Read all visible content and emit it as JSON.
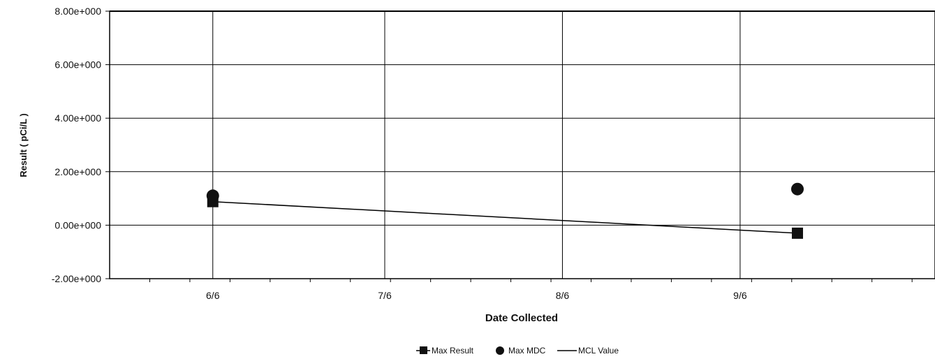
{
  "chart_data": {
    "type": "line",
    "xlabel": "Date Collected",
    "ylabel": "Result ( pCi/L )",
    "x_ticks": [
      "6/6",
      "7/6",
      "8/6",
      "9/6"
    ],
    "x_range": [
      "5/19",
      "10/10"
    ],
    "ylim": [
      -2,
      8
    ],
    "y_ticks": [
      {
        "value": 8,
        "label": "8.00e+000"
      },
      {
        "value": 6,
        "label": "6.00e+000"
      },
      {
        "value": 4,
        "label": "4.00e+000"
      },
      {
        "value": 2,
        "label": "2.00e+000"
      },
      {
        "value": 0,
        "label": "0.00e+000"
      },
      {
        "value": -2,
        "label": "-2.00e+000"
      }
    ],
    "grid": true,
    "legend_position": "bottom",
    "series": [
      {
        "name": "Max Result",
        "marker": "square",
        "line": true,
        "points": [
          {
            "x": "6/6",
            "y": 0.88
          },
          {
            "x": "9/16",
            "y": -0.3
          }
        ]
      },
      {
        "name": "Max MDC",
        "marker": "circle",
        "line": false,
        "points": [
          {
            "x": "6/6",
            "y": 1.1
          },
          {
            "x": "9/16",
            "y": 1.35
          }
        ]
      },
      {
        "name": "MCL Value",
        "marker": "none",
        "line": true,
        "points": []
      }
    ]
  }
}
